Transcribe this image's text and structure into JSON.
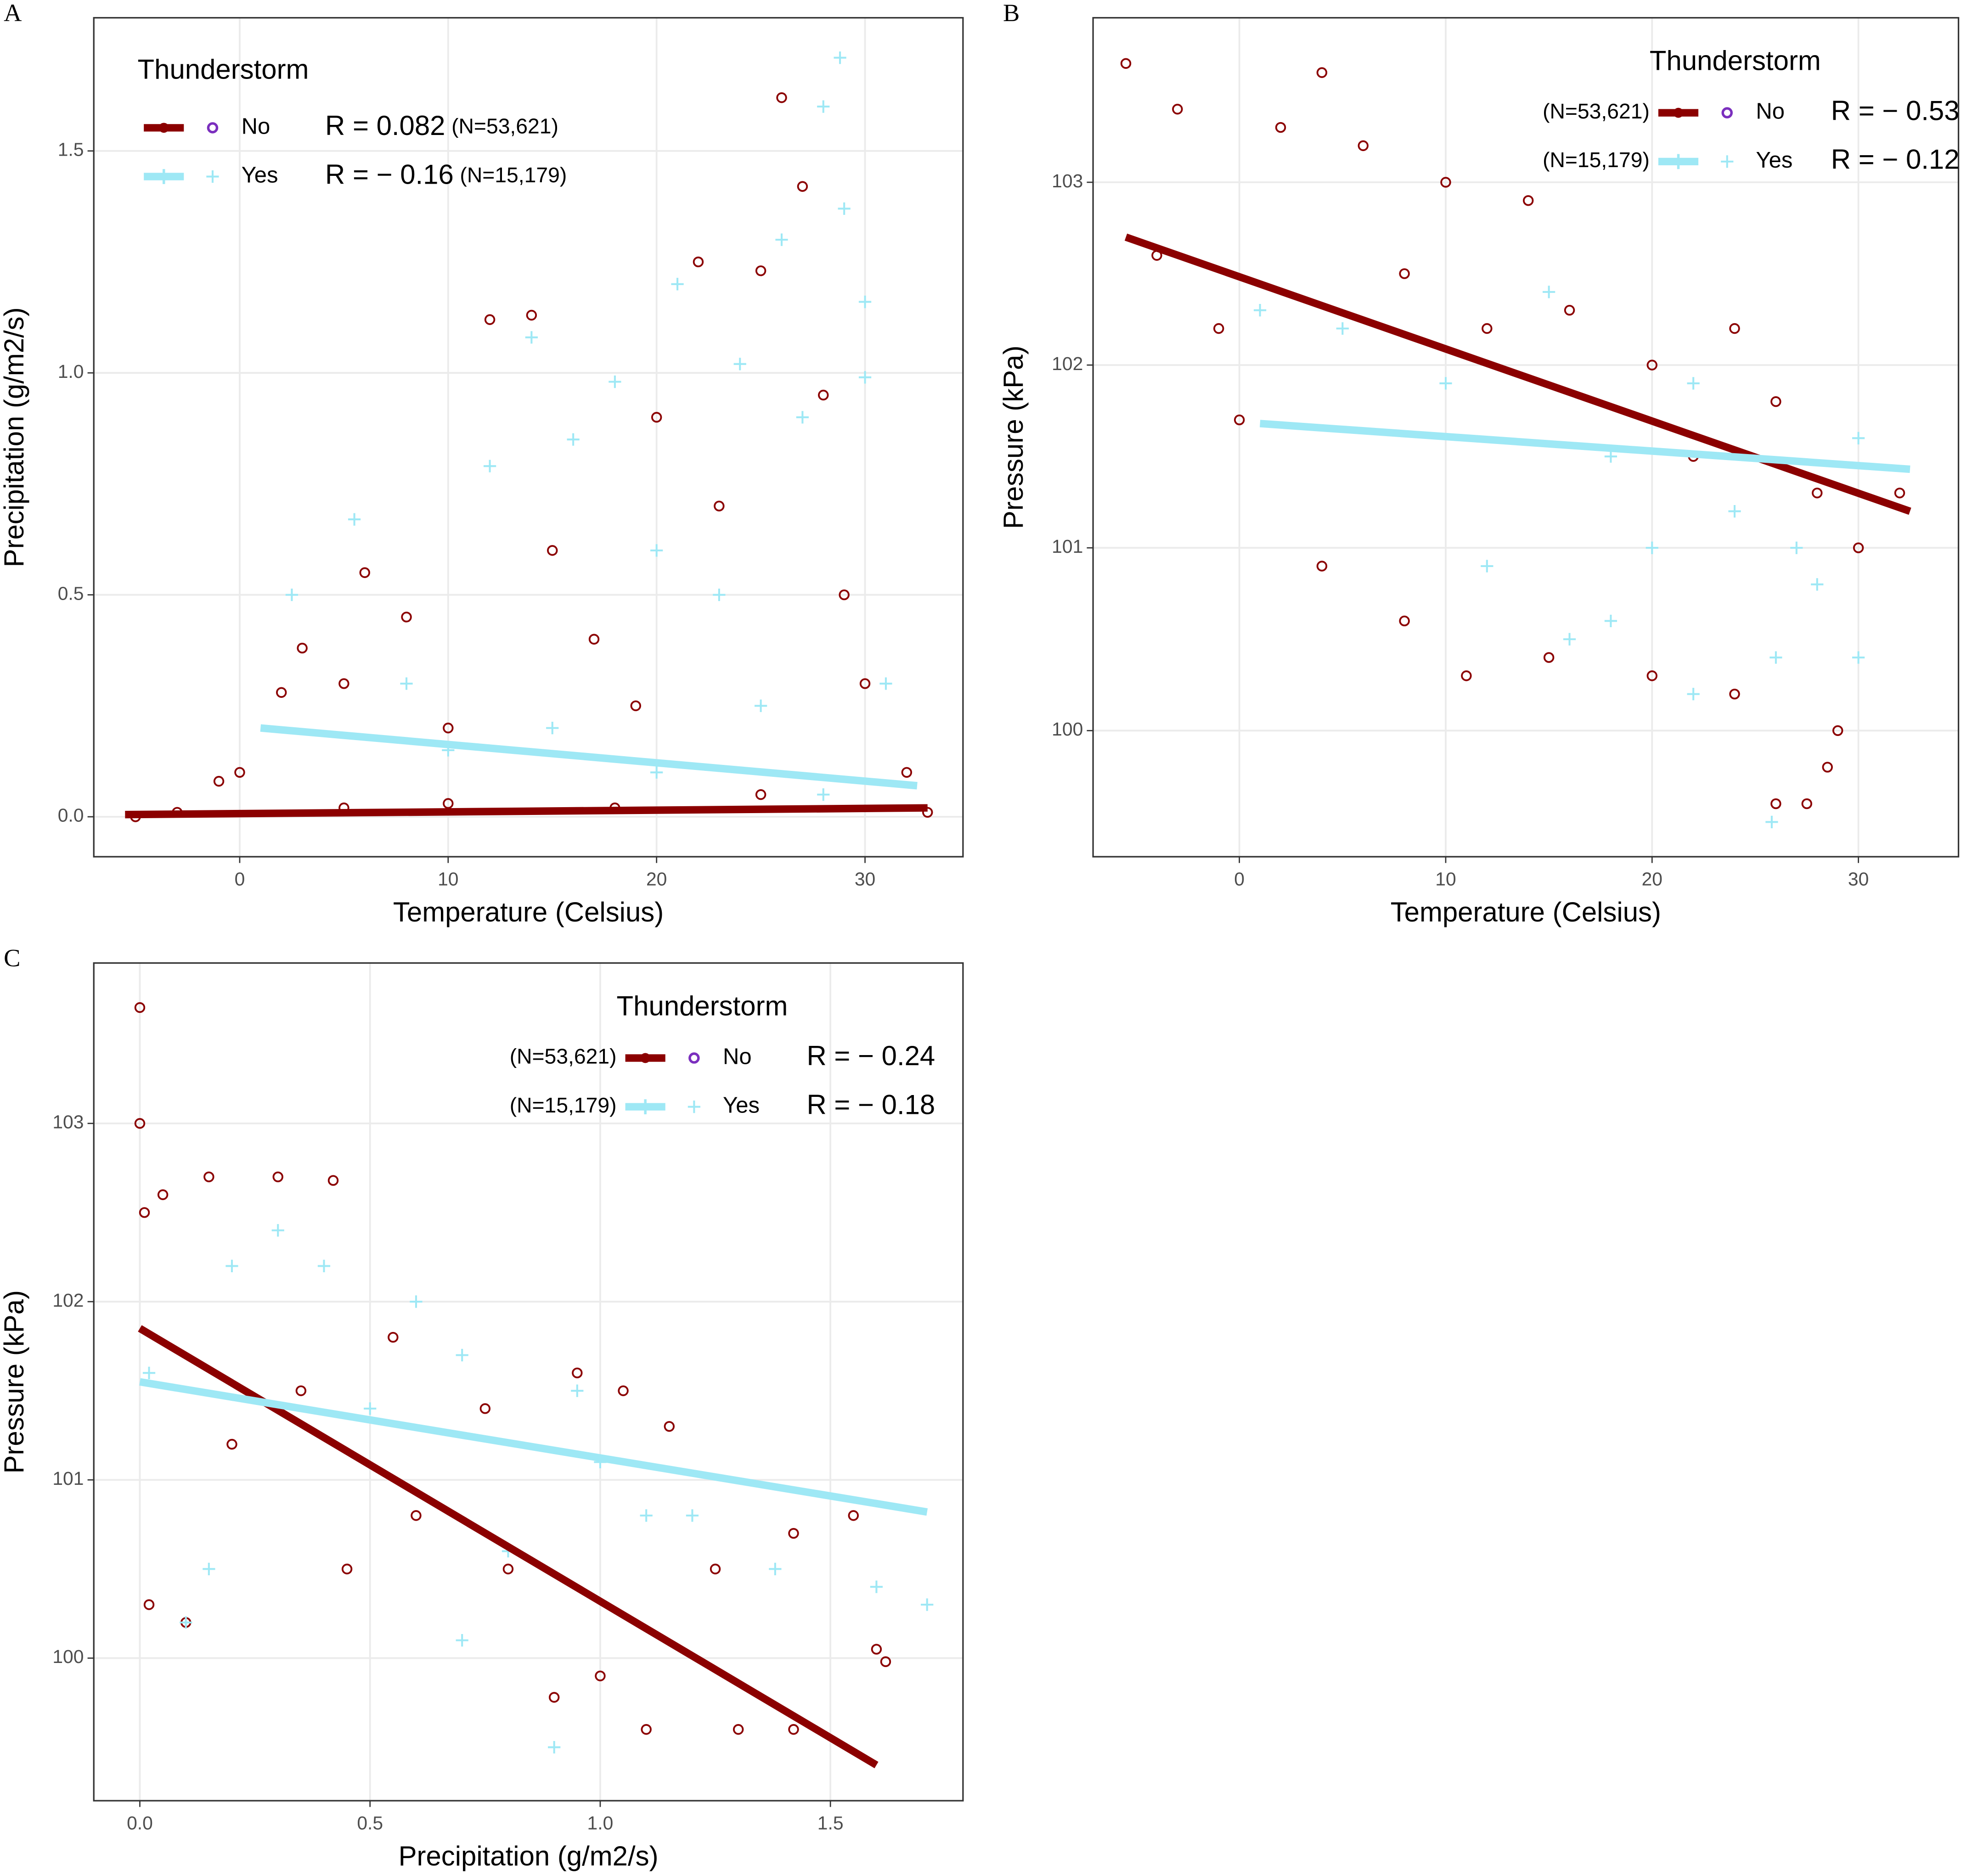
{
  "chart_data": [
    {
      "type": "scatter",
      "panel": "A",
      "xlabel": "Temperature (Celsius)",
      "ylabel": "Precipitation (g/m2/s)",
      "xlim": [
        -7.0,
        34.7
      ],
      "ylim": [
        -0.09,
        1.8
      ],
      "xticks": [
        0,
        10,
        20,
        30
      ],
      "yticks": [
        {
          "value": 0,
          "label": "0.0"
        },
        {
          "value": 0.5,
          "label": "0.5"
        },
        {
          "value": 1.0,
          "label": "1.0"
        },
        {
          "value": 1.5,
          "label": "1.5"
        }
      ],
      "grid": true,
      "legend_title": "Thunderstorm",
      "legend": "top-left",
      "series": [
        {
          "name": "No",
          "color": "#8b0000",
          "marker": "circle",
          "legend_marker_color": "#7b2fbe",
          "r_label": "R = 0.082",
          "n_label": "(N=53,621)",
          "x": [
            -5,
            -3,
            -1,
            0,
            2,
            3,
            5,
            6,
            8,
            10,
            12,
            14,
            15,
            17,
            19,
            20,
            22,
            23,
            25,
            26,
            27,
            28,
            29,
            30,
            32,
            33,
            18,
            25,
            10,
            5
          ],
          "values": [
            0,
            0.01,
            0.08,
            0.1,
            0.28,
            0.38,
            0.3,
            0.55,
            0.45,
            0.2,
            1.12,
            1.13,
            0.6,
            0.4,
            0.25,
            0.9,
            1.25,
            0.7,
            1.23,
            1.62,
            1.42,
            0.95,
            0.5,
            0.3,
            0.1,
            0.01,
            0.02,
            0.05,
            0.03,
            0.02
          ],
          "fit": {
            "x": [
              -5.5,
              33
            ],
            "values": [
              0.005,
              0.02
            ]
          }
        },
        {
          "name": "Yes",
          "color": "#9ee8f5",
          "marker": "plus",
          "legend_marker_color": "#9ee8f5",
          "r_label": "R = − 0.16",
          "n_label": "(N=15,179)",
          "x": [
            2.5,
            5.5,
            8,
            12,
            14,
            16,
            18,
            20,
            21,
            23,
            24,
            26,
            27,
            28,
            28.8,
            29,
            30,
            30,
            31,
            15,
            20,
            25,
            28,
            10
          ],
          "values": [
            0.5,
            0.67,
            0.3,
            0.79,
            1.08,
            0.85,
            0.98,
            0.6,
            1.2,
            0.5,
            1.02,
            1.3,
            0.9,
            1.6,
            1.71,
            1.37,
            1.16,
            0.99,
            0.3,
            0.2,
            0.1,
            0.25,
            0.05,
            0.15
          ],
          "fit": {
            "x": [
              1,
              32.5
            ],
            "values": [
              0.2,
              0.07
            ]
          }
        }
      ]
    },
    {
      "type": "scatter",
      "panel": "B",
      "xlabel": "Temperature (Celsius)",
      "ylabel": "Pressure (kPa)",
      "xlim": [
        -7.09,
        34.85
      ],
      "ylim": [
        99.31,
        103.9
      ],
      "xticks": [
        0,
        10,
        20,
        30
      ],
      "yticks": [
        100,
        101,
        102,
        103
      ],
      "grid": true,
      "legend_title": "Thunderstorm",
      "legend": "top-right",
      "series": [
        {
          "name": "No",
          "color": "#8b0000",
          "marker": "circle",
          "legend_marker_color": "#7b2fbe",
          "r_label": "R = − 0.53",
          "n_label": "(N=53,621)",
          "x": [
            -5.5,
            -4,
            -3,
            -1,
            0,
            2,
            4,
            6,
            8,
            10,
            12,
            14,
            16,
            20,
            22,
            24,
            26,
            28,
            30,
            32,
            4,
            8,
            11,
            15,
            20,
            24,
            26,
            27.5,
            28.5,
            29
          ],
          "values": [
            103.65,
            102.6,
            103.4,
            102.2,
            101.7,
            103.3,
            103.6,
            103.2,
            102.5,
            103.0,
            102.2,
            102.9,
            102.3,
            102.0,
            101.5,
            102.2,
            101.8,
            101.3,
            101.0,
            101.3,
            100.9,
            100.6,
            100.3,
            100.4,
            100.3,
            100.2,
            99.6,
            99.6,
            99.8,
            100.0
          ],
          "fit": {
            "x": [
              -5.5,
              32.5
            ],
            "values": [
              102.7,
              101.2
            ]
          }
        },
        {
          "name": "Yes",
          "color": "#9ee8f5",
          "marker": "plus",
          "legend_marker_color": "#9ee8f5",
          "r_label": "R = − 0.12",
          "n_label": "(N=15,179)",
          "x": [
            1,
            5,
            10,
            15,
            18,
            20,
            22,
            24,
            26,
            28,
            30,
            12,
            16,
            25.8,
            30,
            18,
            22,
            27
          ],
          "values": [
            102.3,
            102.2,
            101.9,
            102.4,
            101.5,
            101.0,
            101.9,
            101.2,
            100.4,
            100.8,
            101.6,
            100.9,
            100.5,
            99.5,
            100.4,
            100.6,
            100.2,
            101.0
          ],
          "fit": {
            "x": [
              1,
              32.5
            ],
            "values": [
              101.68,
              101.43
            ]
          }
        }
      ]
    },
    {
      "type": "scatter",
      "panel": "C",
      "xlabel": "Precipitation (g/m2/s)",
      "ylabel": "Pressure (kPa)",
      "xlim": [
        -0.1,
        1.788
      ],
      "ylim": [
        99.2,
        103.9
      ],
      "xticks": [
        {
          "value": 0,
          "label": "0.0"
        },
        {
          "value": 0.5,
          "label": "0.5"
        },
        {
          "value": 1.0,
          "label": "1.0"
        },
        {
          "value": 1.5,
          "label": "1.5"
        }
      ],
      "yticks": [
        100,
        101,
        102,
        103
      ],
      "grid": true,
      "legend_title": "Thunderstorm",
      "legend": "top-right",
      "series": [
        {
          "name": "No",
          "color": "#8b0000",
          "marker": "circle",
          "legend_marker_color": "#7b2fbe",
          "r_label": "R = − 0.24",
          "n_label": "(N=53,621)",
          "x": [
            0,
            0,
            0.01,
            0.05,
            0.15,
            0.3,
            0.42,
            0.02,
            0.1,
            0.2,
            0.35,
            0.45,
            0.55,
            0.6,
            0.75,
            0.8,
            0.9,
            0.95,
            1.0,
            1.05,
            1.1,
            1.15,
            1.25,
            1.3,
            1.42,
            1.42,
            1.55,
            1.62,
            1.6
          ],
          "values": [
            103.65,
            103.0,
            102.5,
            102.6,
            102.7,
            102.7,
            102.68,
            100.3,
            100.2,
            101.2,
            101.5,
            100.5,
            101.8,
            100.8,
            101.4,
            100.5,
            99.78,
            101.6,
            99.9,
            101.5,
            99.6,
            101.3,
            100.5,
            99.6,
            100.7,
            99.6,
            100.8,
            99.98,
            100.05
          ],
          "fit": {
            "x": [
              0,
              1.6
            ],
            "values": [
              101.85,
              99.4
            ]
          }
        },
        {
          "name": "Yes",
          "color": "#9ee8f5",
          "marker": "plus",
          "legend_marker_color": "#9ee8f5",
          "r_label": "R = − 0.18",
          "n_label": "(N=15,179)",
          "x": [
            0.02,
            0.1,
            0.2,
            0.3,
            0.4,
            0.5,
            0.6,
            0.7,
            0.8,
            0.9,
            0.95,
            1.0,
            1.1,
            1.2,
            1.38,
            1.6,
            1.71,
            0.7,
            0.15
          ],
          "values": [
            101.6,
            100.2,
            102.2,
            102.4,
            102.2,
            101.4,
            102.0,
            101.7,
            100.6,
            99.5,
            101.5,
            101.1,
            100.8,
            100.8,
            100.5,
            100.4,
            100.3,
            100.1,
            100.5
          ],
          "fit": {
            "x": [
              0,
              1.71
            ],
            "values": [
              101.55,
              100.82
            ]
          }
        }
      ]
    }
  ]
}
